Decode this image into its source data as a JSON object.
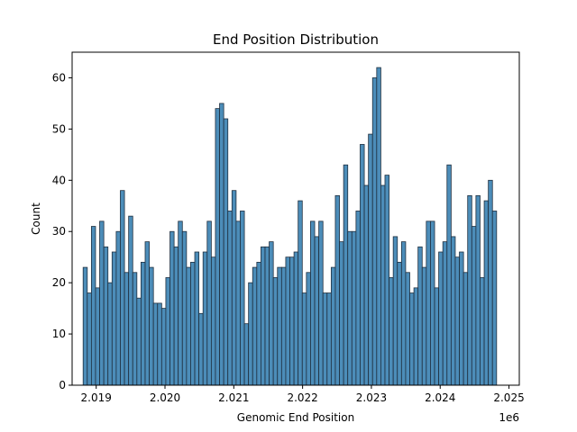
{
  "chart_data": {
    "type": "bar",
    "title": "End Position Distribution",
    "xlabel": "Genomic End Position",
    "ylabel": "Count",
    "x_offset_label": "1e6",
    "xlim": [
      2.01865,
      2.02515
    ],
    "ylim": [
      0,
      65
    ],
    "x_ticks": [
      2.019,
      2.02,
      2.021,
      2.022,
      2.023,
      2.024,
      2.025
    ],
    "x_tick_labels": [
      "2.019",
      "2.020",
      "2.021",
      "2.022",
      "2.023",
      "2.024",
      "2.025"
    ],
    "y_ticks": [
      0,
      10,
      20,
      30,
      40,
      50,
      60
    ],
    "y_tick_labels": [
      "0",
      "10",
      "20",
      "30",
      "40",
      "50",
      "60"
    ],
    "bin_start": 2.01881,
    "bin_end": 2.02482,
    "values": [
      23,
      18,
      31,
      19,
      32,
      27,
      20,
      26,
      30,
      38,
      22,
      33,
      22,
      17,
      24,
      28,
      23,
      16,
      16,
      15,
      21,
      30,
      27,
      32,
      30,
      23,
      24,
      26,
      14,
      26,
      32,
      25,
      54,
      55,
      52,
      34,
      38,
      32,
      34,
      12,
      20,
      23,
      24,
      27,
      27,
      28,
      21,
      23,
      23,
      25,
      25,
      26,
      36,
      18,
      22,
      32,
      29,
      32,
      18,
      18,
      23,
      37,
      28,
      43,
      30,
      30,
      34,
      47,
      39,
      49,
      60,
      62,
      39,
      41,
      21,
      29,
      24,
      28,
      22,
      18,
      19,
      27,
      23,
      32,
      32,
      19,
      26,
      28,
      43,
      29,
      25,
      26,
      22,
      37,
      31,
      37,
      21,
      36,
      40,
      34
    ],
    "bar_color": "#4c8db9",
    "edge_color": "#1f2f3f"
  }
}
